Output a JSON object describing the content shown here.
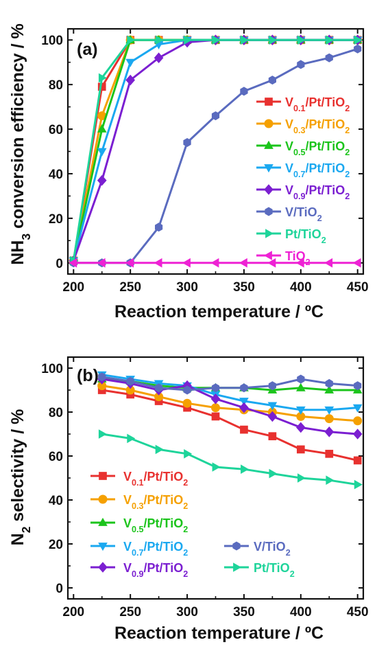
{
  "chart_data": [
    {
      "type": "line",
      "panel_label": "(a)",
      "xlabel": "Reaction temperature / ºC",
      "ylabel": "NH3 conversion efficiency / %",
      "xlim": [
        195,
        455
      ],
      "ylim": [
        -5,
        105
      ],
      "xticks": [
        200,
        250,
        300,
        350,
        400,
        450
      ],
      "yticks": [
        0,
        20,
        40,
        60,
        80,
        100
      ],
      "legend_position": "right",
      "series": [
        {
          "name": "V0.1/Pt/TiO2",
          "color": "#e8312f",
          "marker": "square",
          "x": [
            200,
            225,
            250,
            275,
            300,
            325,
            350,
            375,
            400,
            425,
            450
          ],
          "y": [
            1,
            79,
            100,
            100,
            100,
            100,
            100,
            100,
            100,
            100,
            100
          ]
        },
        {
          "name": "V0.3/Pt/TiO2",
          "color": "#f5a000",
          "marker": "circle",
          "x": [
            200,
            225,
            250,
            275,
            300,
            325,
            350,
            375,
            400,
            425,
            450
          ],
          "y": [
            1,
            66,
            100,
            100,
            100,
            100,
            100,
            100,
            100,
            100,
            100
          ]
        },
        {
          "name": "V0.5/Pt/TiO2",
          "color": "#1bc41b",
          "marker": "triangle-up",
          "x": [
            200,
            225,
            250,
            275,
            300,
            325,
            350,
            375,
            400,
            425,
            450
          ],
          "y": [
            1,
            60,
            100,
            100,
            100,
            100,
            100,
            100,
            100,
            100,
            100
          ]
        },
        {
          "name": "V0.7/Pt/TiO2",
          "color": "#1aa8f0",
          "marker": "triangle-down",
          "x": [
            200,
            225,
            250,
            275,
            300,
            325,
            350,
            375,
            400,
            425,
            450
          ],
          "y": [
            1,
            50,
            90,
            98,
            100,
            100,
            100,
            100,
            100,
            100,
            100
          ]
        },
        {
          "name": "V0.9/Pt/TiO2",
          "color": "#7b1fd1",
          "marker": "diamond",
          "x": [
            200,
            225,
            250,
            275,
            300,
            325,
            350,
            375,
            400,
            425,
            450
          ],
          "y": [
            1,
            37,
            82,
            92,
            99,
            100,
            100,
            100,
            100,
            100,
            100
          ]
        },
        {
          "name": "V/TiO2",
          "color": "#5a6bbf",
          "marker": "hexagon",
          "x": [
            200,
            225,
            250,
            275,
            300,
            325,
            350,
            375,
            400,
            425,
            450
          ],
          "y": [
            0,
            0,
            0,
            16,
            54,
            66,
            77,
            82,
            89,
            92,
            96
          ]
        },
        {
          "name": "Pt/TiO2",
          "color": "#1ed49a",
          "marker": "triangle-right",
          "x": [
            200,
            225,
            250,
            275,
            300,
            325,
            350,
            375,
            400,
            425,
            450
          ],
          "y": [
            1,
            83,
            100,
            100,
            100,
            100,
            100,
            100,
            100,
            100,
            100
          ]
        },
        {
          "name": "TiO2",
          "color": "#ee22d4",
          "marker": "triangle-left",
          "x": [
            200,
            225,
            250,
            275,
            300,
            325,
            350,
            375,
            400,
            425,
            450
          ],
          "y": [
            0,
            0,
            0,
            0,
            0,
            0,
            0,
            0,
            0,
            0,
            0
          ]
        }
      ]
    },
    {
      "type": "line",
      "panel_label": "(b)",
      "xlabel": "Reaction temperature / ºC",
      "ylabel": "N2 selectivity / %",
      "xlim": [
        195,
        455
      ],
      "ylim": [
        -5,
        105
      ],
      "xticks": [
        200,
        250,
        300,
        350,
        400,
        450
      ],
      "yticks": [
        0,
        20,
        40,
        60,
        80,
        100
      ],
      "legend_position": "bottom",
      "series": [
        {
          "name": "V0.1/Pt/TiO2",
          "color": "#e8312f",
          "marker": "square",
          "x": [
            225,
            250,
            275,
            300,
            325,
            350,
            375,
            400,
            425,
            450
          ],
          "y": [
            90,
            88,
            85,
            82,
            78,
            72,
            69,
            63,
            61,
            58
          ]
        },
        {
          "name": "V0.3/Pt/TiO2",
          "color": "#f5a000",
          "marker": "circle",
          "x": [
            225,
            250,
            275,
            300,
            325,
            350,
            375,
            400,
            425,
            450
          ],
          "y": [
            92,
            90,
            87,
            84,
            82,
            81,
            80,
            78,
            77,
            76
          ]
        },
        {
          "name": "V0.5/Pt/TiO2",
          "color": "#1bc41b",
          "marker": "triangle-up",
          "x": [
            225,
            250,
            275,
            300,
            325,
            350,
            375,
            400,
            425,
            450
          ],
          "y": [
            95,
            94,
            92,
            91,
            91,
            91,
            90,
            91,
            90,
            90
          ]
        },
        {
          "name": "V0.7/Pt/TiO2",
          "color": "#1aa8f0",
          "marker": "triangle-down",
          "x": [
            225,
            250,
            275,
            300,
            325,
            350,
            375,
            400,
            425,
            450
          ],
          "y": [
            97,
            95,
            93,
            92,
            88,
            85,
            83,
            81,
            81,
            82
          ]
        },
        {
          "name": "V0.9/Pt/TiO2",
          "color": "#7b1fd1",
          "marker": "diamond",
          "x": [
            225,
            250,
            275,
            300,
            325,
            350,
            375,
            400,
            425,
            450
          ],
          "y": [
            95,
            93,
            90,
            92,
            86,
            82,
            78,
            73,
            71,
            70
          ]
        },
        {
          "name": "V/TiO2",
          "color": "#5a6bbf",
          "marker": "hexagon",
          "x": [
            225,
            250,
            275,
            300,
            325,
            350,
            375,
            400,
            425,
            450
          ],
          "y": [
            96,
            94,
            91,
            90,
            91,
            91,
            92,
            95,
            93,
            92
          ]
        },
        {
          "name": "Pt/TiO2",
          "color": "#1ed49a",
          "marker": "triangle-right",
          "x": [
            225,
            250,
            275,
            300,
            325,
            350,
            375,
            400,
            425,
            450
          ],
          "y": [
            70,
            68,
            63,
            61,
            55,
            54,
            52,
            50,
            49,
            47
          ]
        }
      ]
    }
  ]
}
